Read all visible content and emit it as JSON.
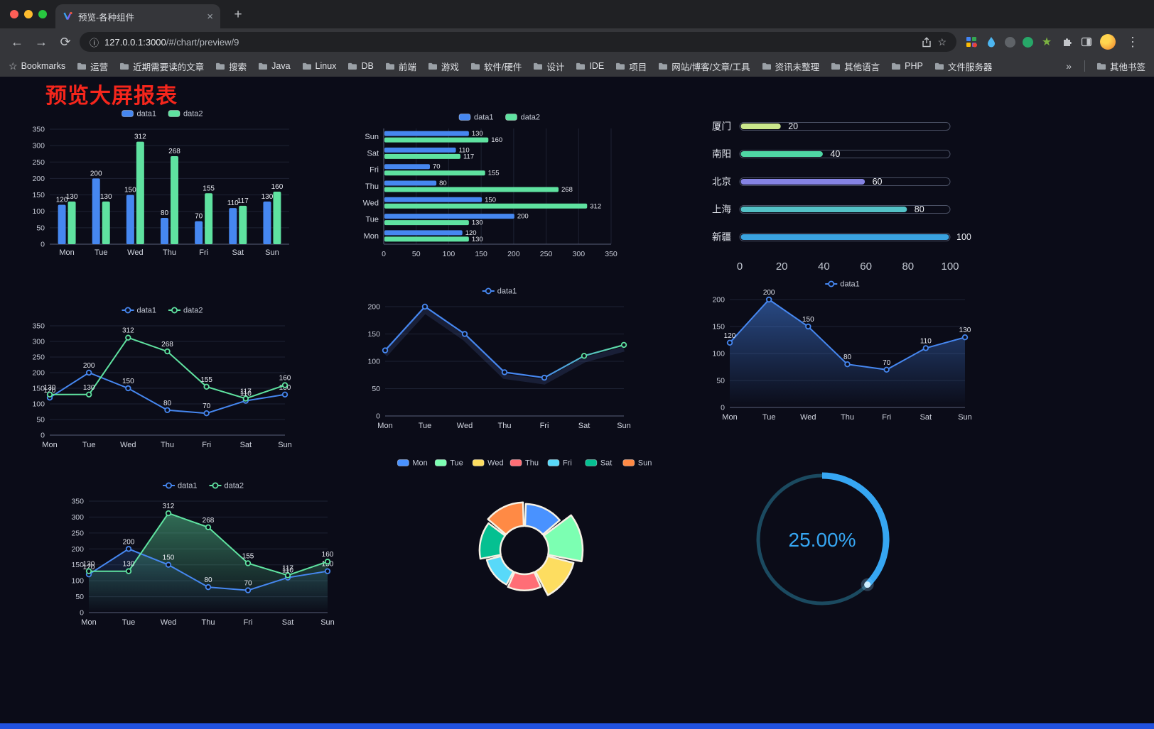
{
  "browser": {
    "tab": {
      "title": "预览-各种组件"
    },
    "icons": {
      "back": "←",
      "forward": "→",
      "reload": "⟳",
      "new_tab": "+",
      "close_tab": "×",
      "menu": "⋮",
      "info": "ⓘ",
      "address_star": "☆",
      "bookmark_star": "☆",
      "overflow": "»"
    },
    "address": {
      "url_host": "127.0.0.1:3000",
      "url_path": "/#/chart/preview/9"
    },
    "bookmarks": {
      "first_label": "Bookmarks",
      "items": [
        "运营",
        "近期需要读的文章",
        "搜索",
        "Java",
        "Linux",
        "DB",
        "前端",
        "游戏",
        "软件/硬件",
        "设计",
        "IDE",
        "项目",
        "网站/博客/文章/工具",
        "资讯未整理",
        "其他语言",
        "PHP",
        "文件服务器"
      ],
      "other_label": "其他书签"
    }
  },
  "page": {
    "title": "预览大屏报表",
    "title_color": "#f5261c",
    "background": "#0b0c18",
    "footer_color": "#2152df",
    "accent_blue": "#4687f0",
    "accent_green": "#5fe2a0"
  },
  "chart_data": [
    {
      "id": "c1",
      "type": "bar",
      "variant": "grouped-vertical",
      "categories": [
        "Mon",
        "Tue",
        "Wed",
        "Thu",
        "Fri",
        "Sat",
        "Sun"
      ],
      "series": [
        {
          "name": "data1",
          "color": "#4687f0",
          "values": [
            120,
            200,
            150,
            80,
            70,
            110,
            130
          ]
        },
        {
          "name": "data2",
          "color": "#5fe2a0",
          "values": [
            130,
            130,
            312,
            268,
            155,
            117,
            160
          ]
        }
      ],
      "ylim": [
        0,
        350
      ],
      "ytick": 50,
      "value_labels": true,
      "legend_position": "top",
      "grid": true
    },
    {
      "id": "c2",
      "type": "bar",
      "variant": "grouped-horizontal",
      "categories": [
        "Mon",
        "Tue",
        "Wed",
        "Thu",
        "Fri",
        "Sat",
        "Sun"
      ],
      "display_order_top_to_bottom": [
        "Sun",
        "Sat",
        "Fri",
        "Thu",
        "Wed",
        "Tue",
        "Mon"
      ],
      "series": [
        {
          "name": "data1",
          "color": "#4687f0",
          "values": [
            120,
            200,
            150,
            80,
            70,
            110,
            130
          ]
        },
        {
          "name": "data2",
          "color": "#5fe2a0",
          "values": [
            130,
            130,
            312,
            268,
            155,
            117,
            160
          ]
        }
      ],
      "xlim": [
        0,
        350
      ],
      "xtick": 50,
      "value_labels": true,
      "legend_position": "top",
      "grid": true
    },
    {
      "id": "c3",
      "type": "bar",
      "variant": "capsule",
      "max": 100,
      "xticks": [
        0,
        20,
        40,
        60,
        80,
        100
      ],
      "items": [
        {
          "label": "厦门",
          "value": 20,
          "color": "#cbe88c"
        },
        {
          "label": "南阳",
          "value": 40,
          "color": "#4fd6a4"
        },
        {
          "label": "北京",
          "value": 60,
          "color": "#8583e3"
        },
        {
          "label": "上海",
          "value": 80,
          "color": "#54c2c6"
        },
        {
          "label": "新疆",
          "value": 100,
          "color": "#3aa3e0"
        }
      ]
    },
    {
      "id": "c4",
      "type": "line",
      "variant": "line-multi",
      "categories": [
        "Mon",
        "Tue",
        "Wed",
        "Thu",
        "Fri",
        "Sat",
        "Sun"
      ],
      "series": [
        {
          "name": "data1",
          "color": "#4687f0",
          "values": [
            120,
            200,
            150,
            80,
            70,
            110,
            130
          ]
        },
        {
          "name": "data2",
          "color": "#5fe2a0",
          "values": [
            130,
            130,
            312,
            268,
            155,
            117,
            160
          ]
        }
      ],
      "ylim": [
        0,
        350
      ],
      "ytick": 50,
      "value_labels": true,
      "legend_position": "top",
      "grid": true
    },
    {
      "id": "c5",
      "type": "line",
      "variant": "line-gradient",
      "categories": [
        "Mon",
        "Tue",
        "Wed",
        "Thu",
        "Fri",
        "Sat",
        "Sun"
      ],
      "series": [
        {
          "name": "data1",
          "gradient": [
            "#4687f0",
            "#5fe2a0"
          ],
          "values": [
            120,
            200,
            150,
            80,
            70,
            110,
            130
          ]
        }
      ],
      "ylim": [
        0,
        200
      ],
      "ytick": 50,
      "value_labels": false,
      "legend_position": "top",
      "grid": true
    },
    {
      "id": "c6",
      "type": "area",
      "variant": "area-single",
      "categories": [
        "Mon",
        "Tue",
        "Wed",
        "Thu",
        "Fri",
        "Sat",
        "Sun"
      ],
      "series": [
        {
          "name": "data1",
          "color": "#4687f0",
          "values": [
            120,
            200,
            150,
            80,
            70,
            110,
            130
          ]
        }
      ],
      "ylim": [
        0,
        200
      ],
      "ytick": 50,
      "value_labels": true,
      "legend_position": "top",
      "grid": true
    },
    {
      "id": "c7",
      "type": "line",
      "variant": "line-multi",
      "categories": [
        "Mon",
        "Tue",
        "Wed",
        "Thu",
        "Fri",
        "Sat",
        "Sun"
      ],
      "series": [
        {
          "name": "data1",
          "color": "#4687f0",
          "values": [
            120,
            200,
            150,
            80,
            70,
            110,
            130
          ],
          "area": true,
          "area_opacity": 0.18
        },
        {
          "name": "data2",
          "color": "#5fe2a0",
          "values": [
            130,
            130,
            312,
            268,
            155,
            117,
            160
          ],
          "area": true,
          "area_opacity": 0.45
        }
      ],
      "ylim": [
        0,
        350
      ],
      "ytick": 50,
      "value_labels": true,
      "legend_position": "top",
      "grid": true
    },
    {
      "id": "c8",
      "type": "pie",
      "variant": "rose-donut",
      "legend_position": "top",
      "items": [
        {
          "label": "Mon",
          "value": 120,
          "color": "#4992ff"
        },
        {
          "label": "Tue",
          "value": 200,
          "color": "#7cffb2"
        },
        {
          "label": "Wed",
          "value": 150,
          "color": "#fddd60"
        },
        {
          "label": "Thu",
          "value": 80,
          "color": "#ff6e76"
        },
        {
          "label": "Fri",
          "value": 70,
          "color": "#58d9f9"
        },
        {
          "label": "Sat",
          "value": 110,
          "color": "#05c091"
        },
        {
          "label": "Sun",
          "value": 130,
          "color": "#ff8a45"
        }
      ]
    },
    {
      "id": "c9",
      "type": "pie",
      "variant": "progress-gauge",
      "value": 25,
      "label": "25.00%",
      "color": "#36a6f2",
      "track_color": "#1b4a60"
    }
  ]
}
